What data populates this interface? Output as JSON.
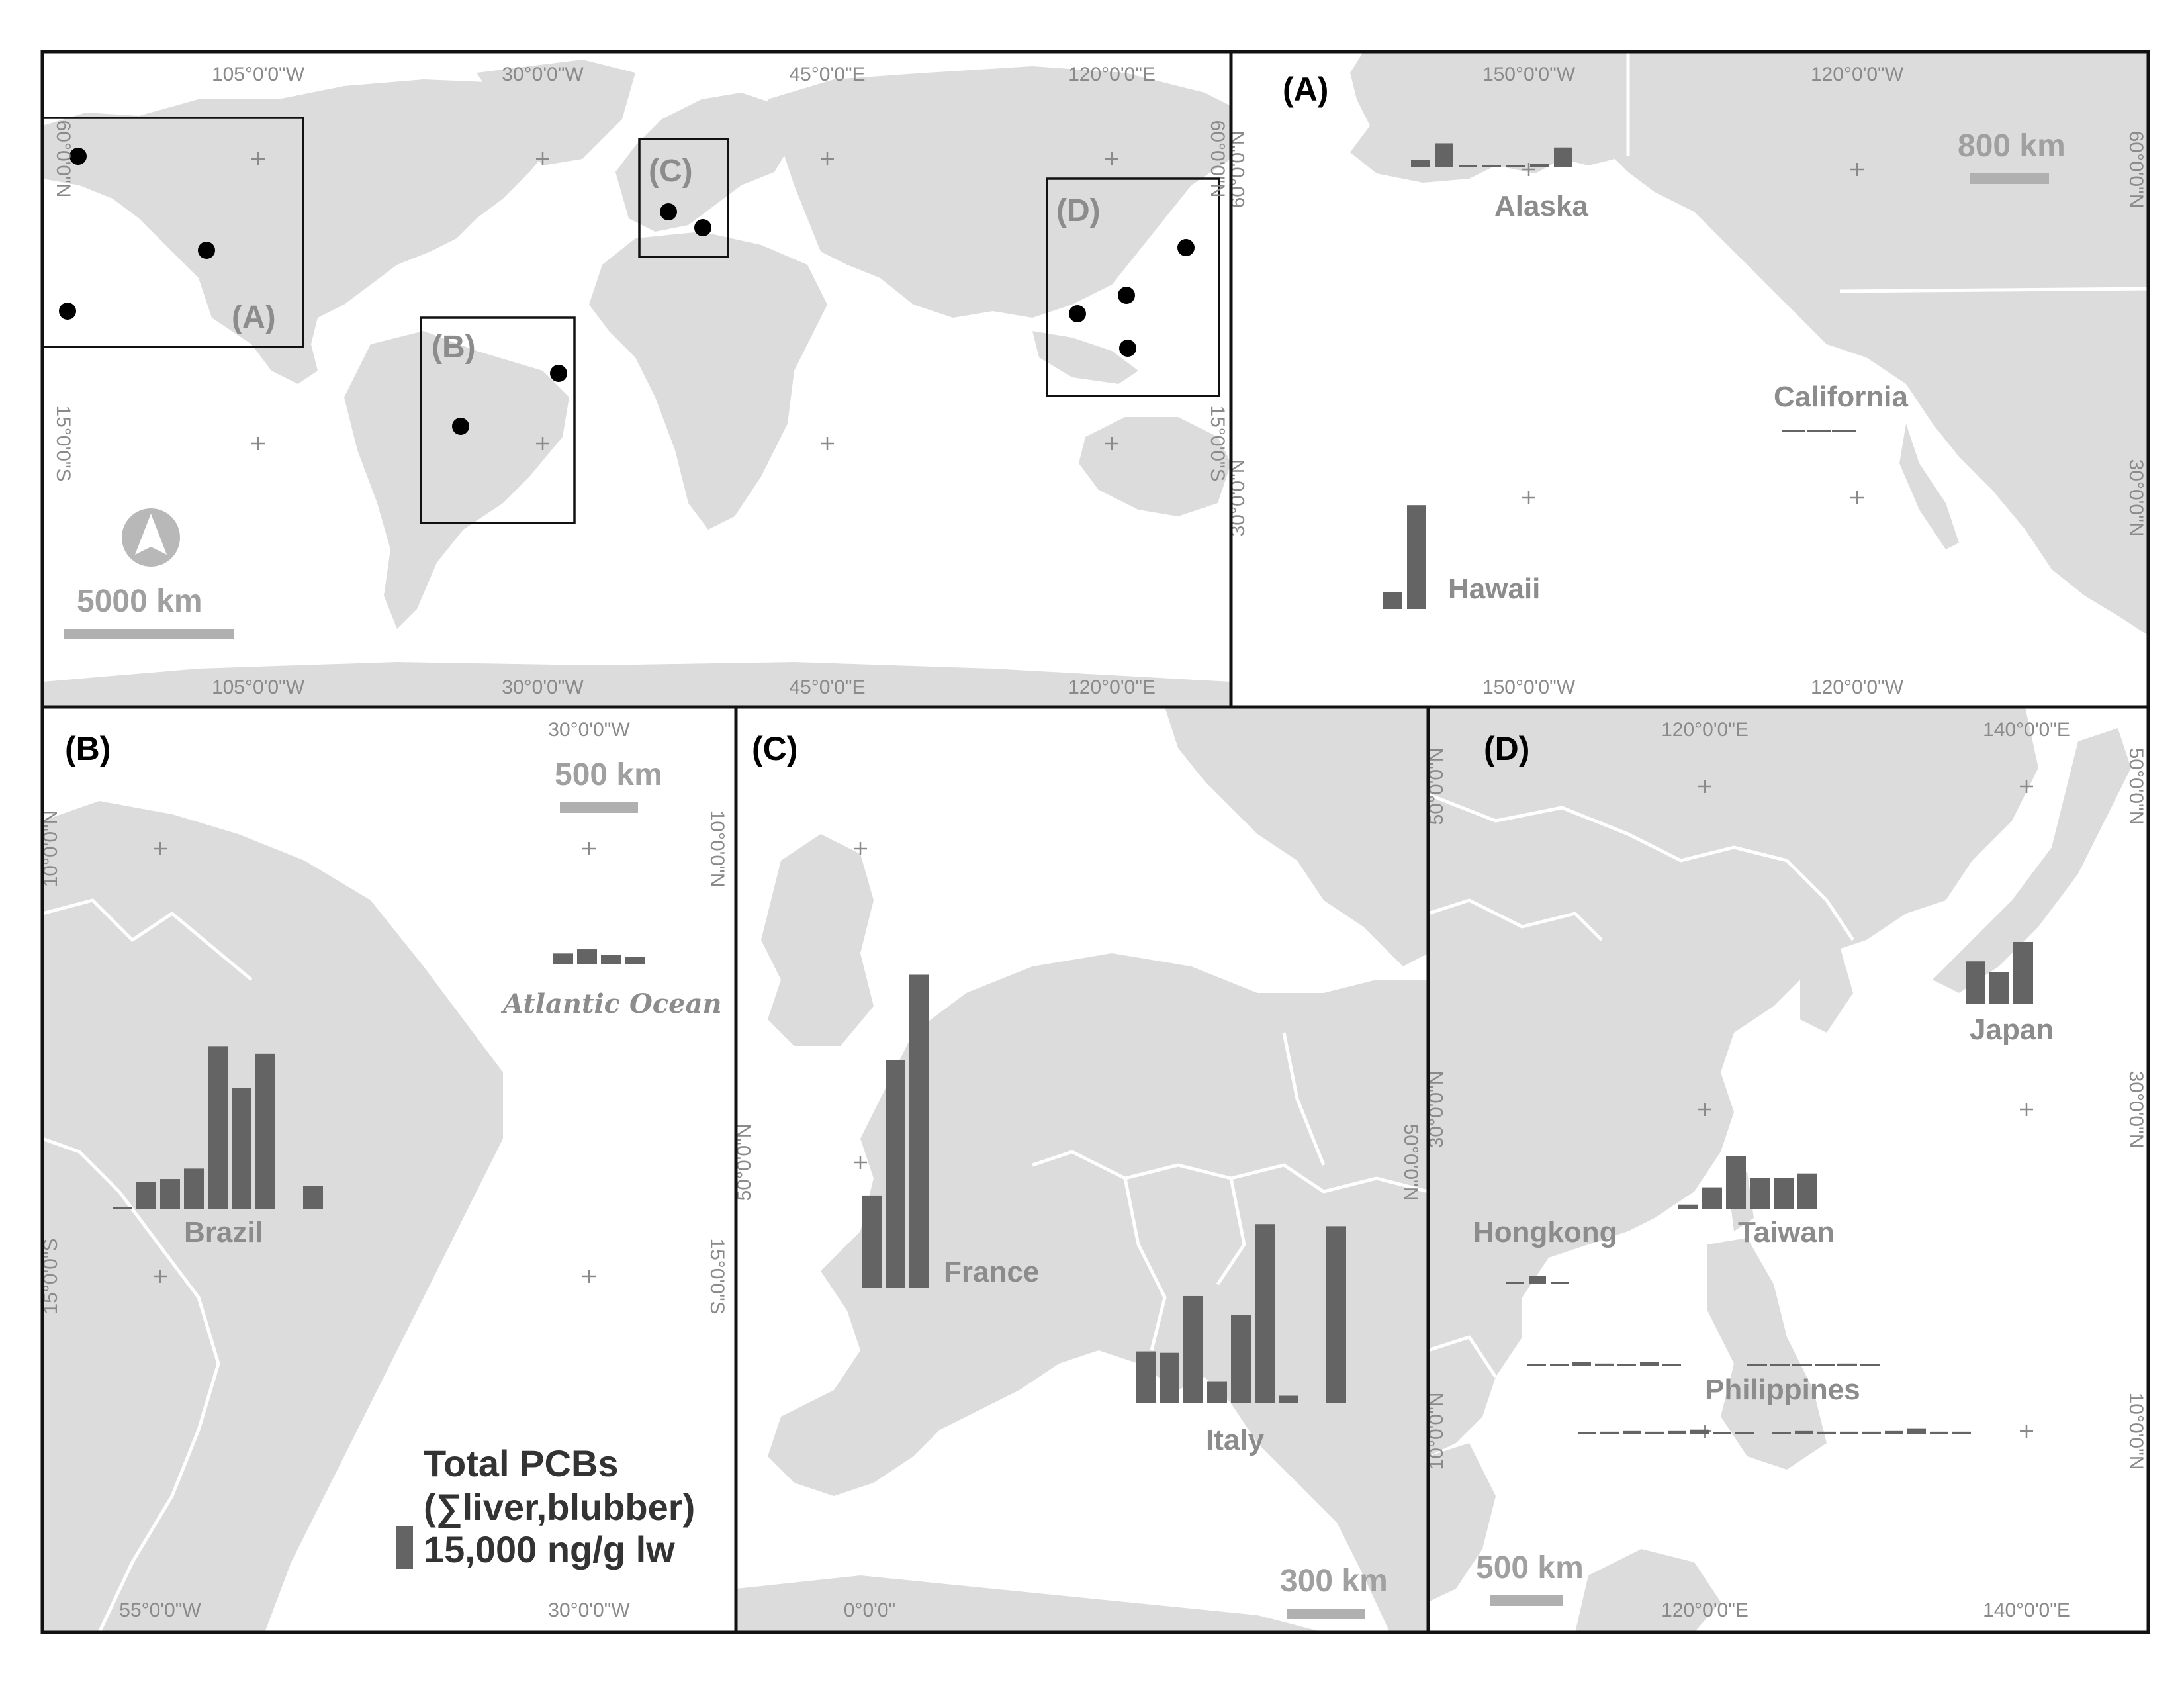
{
  "colors": {
    "land": "#dcdcdc",
    "sea": "#ffffff",
    "bar": "#646464",
    "label_gray": "#8c8c8c",
    "frame": "#111111"
  },
  "world": {
    "lon_top": [
      "105°0'0\"W",
      "30°0'0\"W",
      "45°0'0\"E",
      "120°0'0\"E"
    ],
    "lon_bottom": [
      "105°0'0\"W",
      "30°0'0\"W",
      "45°0'0\"E",
      "120°0'0\"E"
    ],
    "lat_left": [
      "60°0'0\"N",
      "15°0'0\"S"
    ],
    "lat_right": [
      "60°0'0\"N",
      "15°0'0\"S"
    ],
    "box_labels": [
      "(A)",
      "(B)",
      "(C)",
      "(D)"
    ],
    "scale_label": "5000 km",
    "north_arrow": "north-arrow-icon"
  },
  "panel_a": {
    "label": "(A)",
    "lon_top": [
      "150°0'0\"W",
      "120°0'0\"W"
    ],
    "lon_bottom": [
      "150°0'0\"W",
      "120°0'0\"W"
    ],
    "lat_left": [
      "60°0'0\"N",
      "30°0'0\"N"
    ],
    "lat_right": [
      "60°0'0\"N",
      "30°0'0\"N"
    ],
    "scale_label": "800 km",
    "regions": {
      "alaska": "Alaska",
      "california": "California",
      "hawaii": "Hawaii"
    }
  },
  "panel_b": {
    "label": "(B)",
    "lon_top": [
      "30°0'0\"W"
    ],
    "lon_bottom": [
      "55°0'0\"W",
      "30°0'0\"W"
    ],
    "lat_left": [
      "10°0'0\"N",
      "15°0'0\"S"
    ],
    "lat_right": [
      "10°0'0\"N",
      "15°0'0\"S"
    ],
    "scale_label": "500 km",
    "regions": {
      "brazil": "Brazil",
      "atlantic": "Atlantic Ocean"
    },
    "legend": {
      "line1": "Total PCBs",
      "line2": "(∑liver,blubber)",
      "line3": "15,000 ng/g lw"
    }
  },
  "panel_c": {
    "label": "(C)",
    "lon_bottom": [
      "0°0'0\""
    ],
    "lat_left": [
      "50°0'0\"N"
    ],
    "lat_right": [
      "50°0'0\"N"
    ],
    "scale_label": "300 km",
    "regions": {
      "france": "France",
      "italy": "Italy"
    }
  },
  "panel_d": {
    "label": "(D)",
    "lon_top": [
      "120°0'0\"E",
      "140°0'0\"E"
    ],
    "lon_bottom": [
      "120°0'0\"E",
      "140°0'0\"E"
    ],
    "lat_left": [
      "50°0'0\"N",
      "30°0'0\"N",
      "10°0'0\"N"
    ],
    "lat_right": [
      "50°0'0\"N",
      "30°0'0\"N",
      "10°0'0\"N"
    ],
    "scale_label": "500 km",
    "regions": {
      "japan": "Japan",
      "taiwan": "Taiwan",
      "hongkong": "Hongkong",
      "philippines": "Philippines"
    }
  },
  "bar_groups": [
    {
      "region": "Alaska",
      "values": [
        1000,
        3400,
        200,
        200,
        200,
        400,
        2800
      ]
    },
    {
      "region": "California",
      "values": [
        150,
        150,
        150
      ]
    },
    {
      "region": "Hawaii",
      "values": [
        2400,
        15000
      ]
    },
    {
      "region": "Brazil",
      "values": [
        200,
        3900,
        4300,
        5800,
        23500,
        17500,
        22400,
        0,
        3300
      ]
    },
    {
      "region": "Atlantic Ocean",
      "values": [
        1500,
        2100,
        1300,
        1000
      ]
    },
    {
      "region": "France",
      "values": [
        13400,
        33000,
        45300
      ]
    },
    {
      "region": "Italy",
      "values": [
        7500,
        7300,
        15500,
        3200,
        12800,
        25900,
        1100,
        0,
        25600
      ]
    },
    {
      "region": "Japan",
      "values": [
        6100,
        4500,
        8900
      ]
    },
    {
      "region": "Taiwan",
      "values": [
        600,
        3100,
        7600,
        4400,
        4400,
        5100
      ]
    },
    {
      "region": "Hongkong",
      "values": [
        150,
        1200,
        150
      ]
    },
    {
      "region": "Philippines (row 1 left)",
      "values": [
        300,
        300,
        600,
        400,
        300,
        600,
        150
      ]
    },
    {
      "region": "Philippines (row 1 right)",
      "values": [
        150,
        300,
        300,
        300,
        400,
        300
      ]
    },
    {
      "region": "Philippines (row 2 left)",
      "values": [
        150,
        300,
        400,
        300,
        400,
        600,
        150,
        150
      ]
    },
    {
      "region": "Philippines (row 2 right)",
      "values": [
        150,
        400,
        300,
        300,
        300,
        400,
        800,
        300,
        300
      ]
    }
  ]
}
